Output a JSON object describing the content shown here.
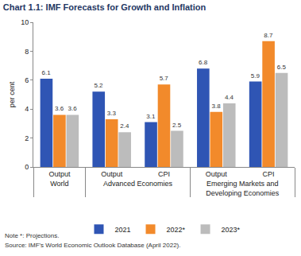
{
  "chart_data": {
    "type": "bar",
    "title": "Chart 1.1: IMF Forecasts for Growth and Inflation",
    "y_label": "per cent",
    "categories": [
      [
        "World",
        "Output"
      ],
      [
        "Advanced Economies",
        "Output"
      ],
      [
        "Advanced Economies",
        "CPI"
      ],
      [
        "Emerging Markets and Developing Economies",
        "Output"
      ],
      [
        "Emerging Markets and Developing Economies",
        "CPI"
      ]
    ],
    "series": [
      {
        "name": "2021",
        "color": "#2f55b4",
        "values": [
          6.1,
          5.2,
          3.1,
          6.8,
          5.9
        ]
      },
      {
        "name": "2022*",
        "color": "#f28a2b",
        "values": [
          3.6,
          3.3,
          5.7,
          3.8,
          8.7
        ]
      },
      {
        "name": "2023*",
        "color": "#bcbcbc",
        "values": [
          3.6,
          2.4,
          2.5,
          4.4,
          6.5
        ]
      }
    ],
    "ylim": [
      0,
      10
    ],
    "yticks": [
      0,
      2,
      4,
      6,
      8,
      10
    ],
    "grid": false,
    "legend": "bottom",
    "data_labels": true,
    "annotations": [
      "Note *: Projections.",
      "Source: IMF's World Economic Outlook Database (April 2022)."
    ]
  }
}
